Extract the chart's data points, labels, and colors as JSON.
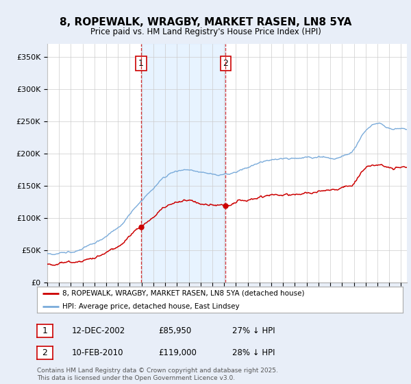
{
  "title": "8, ROPEWALK, WRAGBY, MARKET RASEN, LN8 5YA",
  "subtitle": "Price paid vs. HM Land Registry's House Price Index (HPI)",
  "ylim": [
    0,
    370000
  ],
  "yticks": [
    0,
    50000,
    100000,
    150000,
    200000,
    250000,
    300000,
    350000
  ],
  "ytick_labels": [
    "£0",
    "£50K",
    "£100K",
    "£150K",
    "£200K",
    "£250K",
    "£300K",
    "£350K"
  ],
  "bg_color": "#e8eef8",
  "plot_bg_color": "#ffffff",
  "grid_color": "#cccccc",
  "line1_color": "#cc0000",
  "line2_color": "#7aabda",
  "vline_color": "#cc0000",
  "shade_color": "#ddeeff",
  "purchase1_year": 2002.95,
  "purchase1_price": 85950,
  "purchase1_label": "1",
  "purchase1_date": "12-DEC-2002",
  "purchase1_hpi": "27% ↓ HPI",
  "purchase2_year": 2010.12,
  "purchase2_price": 119000,
  "purchase2_label": "2",
  "purchase2_date": "10-FEB-2010",
  "purchase2_hpi": "28% ↓ HPI",
  "legend_line1": "8, ROPEWALK, WRAGBY, MARKET RASEN, LN8 5YA (detached house)",
  "legend_line2": "HPI: Average price, detached house, East Lindsey",
  "footer": "Contains HM Land Registry data © Crown copyright and database right 2025.\nThis data is licensed under the Open Government Licence v3.0.",
  "xmin": 1995,
  "xmax": 2025.5
}
